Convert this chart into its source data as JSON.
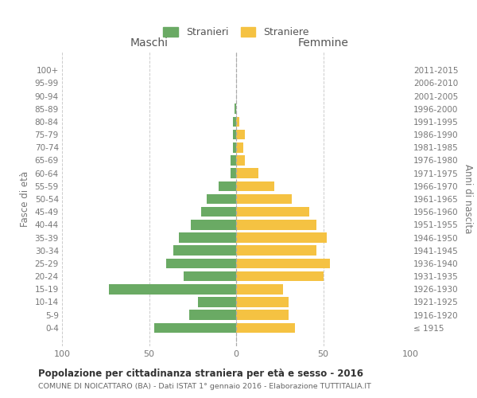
{
  "age_groups": [
    "100+",
    "95-99",
    "90-94",
    "85-89",
    "80-84",
    "75-79",
    "70-74",
    "65-69",
    "60-64",
    "55-59",
    "50-54",
    "45-49",
    "40-44",
    "35-39",
    "30-34",
    "25-29",
    "20-24",
    "15-19",
    "10-14",
    "5-9",
    "0-4"
  ],
  "birth_years": [
    "≤ 1915",
    "1916-1920",
    "1921-1925",
    "1926-1930",
    "1931-1935",
    "1936-1940",
    "1941-1945",
    "1946-1950",
    "1951-1955",
    "1956-1960",
    "1961-1965",
    "1966-1970",
    "1971-1975",
    "1976-1980",
    "1981-1985",
    "1986-1990",
    "1991-1995",
    "1996-2000",
    "2001-2005",
    "2006-2010",
    "2011-2015"
  ],
  "maschi": [
    0,
    0,
    0,
    1,
    2,
    2,
    2,
    3,
    3,
    10,
    17,
    20,
    26,
    33,
    36,
    40,
    30,
    73,
    22,
    27,
    47
  ],
  "femmine": [
    0,
    0,
    0,
    0,
    2,
    5,
    4,
    5,
    13,
    22,
    32,
    42,
    46,
    52,
    46,
    54,
    50,
    27,
    30,
    30,
    34
  ],
  "maschi_color": "#6aaa64",
  "femmine_color": "#f5c242",
  "background_color": "#ffffff",
  "grid_color": "#cccccc",
  "title": "Popolazione per cittadinanza straniera per età e sesso - 2016",
  "subtitle": "COMUNE DI NOICATTARO (BA) - Dati ISTAT 1° gennaio 2016 - Elaborazione TUTTITALIA.IT",
  "xlabel_left": "Maschi",
  "xlabel_right": "Femmine",
  "ylabel_left": "Fasce di età",
  "ylabel_right": "Anni di nascita",
  "legend_maschi": "Stranieri",
  "legend_femmine": "Straniere",
  "xlim": 100
}
